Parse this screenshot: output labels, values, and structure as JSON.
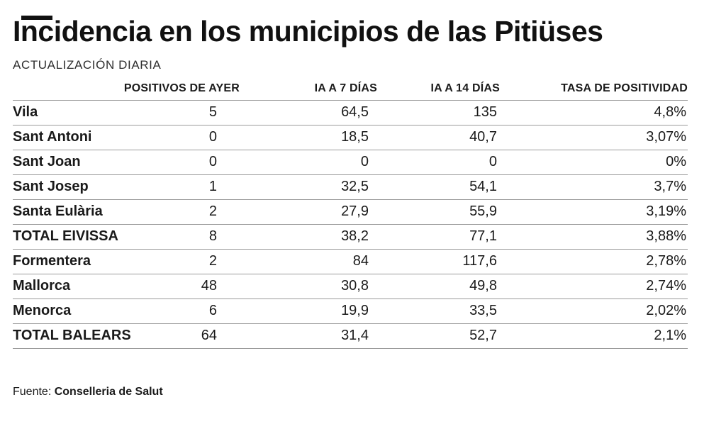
{
  "title": "Incidencia en los municipios de las Pitiüses",
  "subtitle": "ACTUALIZACIÓN DIARIA",
  "source": {
    "label": "Fuente:",
    "value": "Conselleria de Salut"
  },
  "colors": {
    "text": "#1a1a1a",
    "row_line": "#9a9a9a",
    "background": "#ffffff"
  },
  "chart_data": {
    "type": "table",
    "columns": [
      "",
      "POSITIVOS DE AYER",
      "IA A 7 DÍAS",
      "IA A 14 DÍAS",
      "TASA DE POSITIVIDAD"
    ],
    "rows": [
      [
        "Vila",
        "5",
        "64,5",
        "135",
        "4,8%"
      ],
      [
        "Sant Antoni",
        "0",
        "18,5",
        "40,7",
        "3,07%"
      ],
      [
        "Sant Joan",
        "0",
        "0",
        "0",
        "0%"
      ],
      [
        "Sant Josep",
        "1",
        "32,5",
        "54,1",
        "3,7%"
      ],
      [
        "Santa Eulària",
        "2",
        "27,9",
        "55,9",
        "3,19%"
      ],
      [
        "TOTAL EIVISSA",
        "8",
        "38,2",
        "77,1",
        "3,88%"
      ],
      [
        "Formentera",
        "2",
        "84",
        "117,6",
        "2,78%"
      ],
      [
        "Mallorca",
        "48",
        "30,8",
        "49,8",
        "2,74%"
      ],
      [
        "Menorca",
        "6",
        "19,9",
        "33,5",
        "2,02%"
      ],
      [
        "TOTAL BALEARS",
        "64",
        "31,4",
        "52,7",
        "2,1%"
      ]
    ]
  }
}
